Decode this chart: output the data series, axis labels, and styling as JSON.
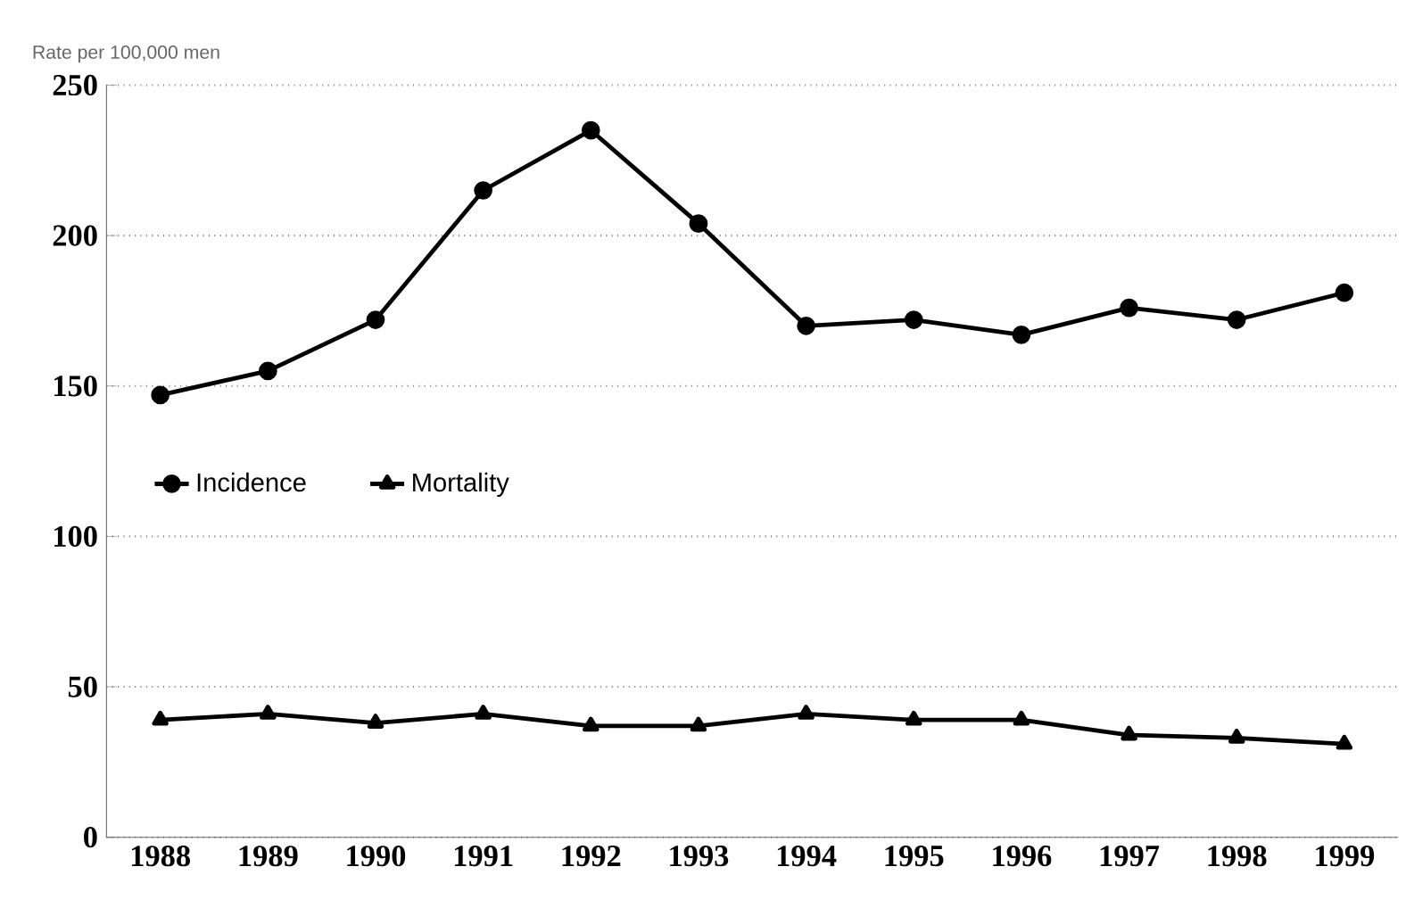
{
  "chart_data": {
    "type": "line",
    "ylabel": "Rate per 100,000 men",
    "categories": [
      "1988",
      "1989",
      "1990",
      "1991",
      "1992",
      "1993",
      "1994",
      "1995",
      "1996",
      "1997",
      "1998",
      "1999"
    ],
    "series": [
      {
        "name": "Incidence",
        "color": "#000000",
        "marker": "circle",
        "values": [
          147,
          155,
          172,
          215,
          235,
          204,
          170,
          172,
          167,
          176,
          172,
          181
        ]
      },
      {
        "name": "Mortality",
        "color": "#000000",
        "marker": "triangle",
        "values": [
          39,
          41,
          38,
          41,
          37,
          37,
          41,
          39,
          39,
          34,
          33,
          31
        ]
      }
    ],
    "ylim": [
      0,
      250
    ],
    "yticks": [
      0,
      50,
      100,
      150,
      200,
      250
    ],
    "grid": "y",
    "legend": "left",
    "line_style": "solid"
  }
}
